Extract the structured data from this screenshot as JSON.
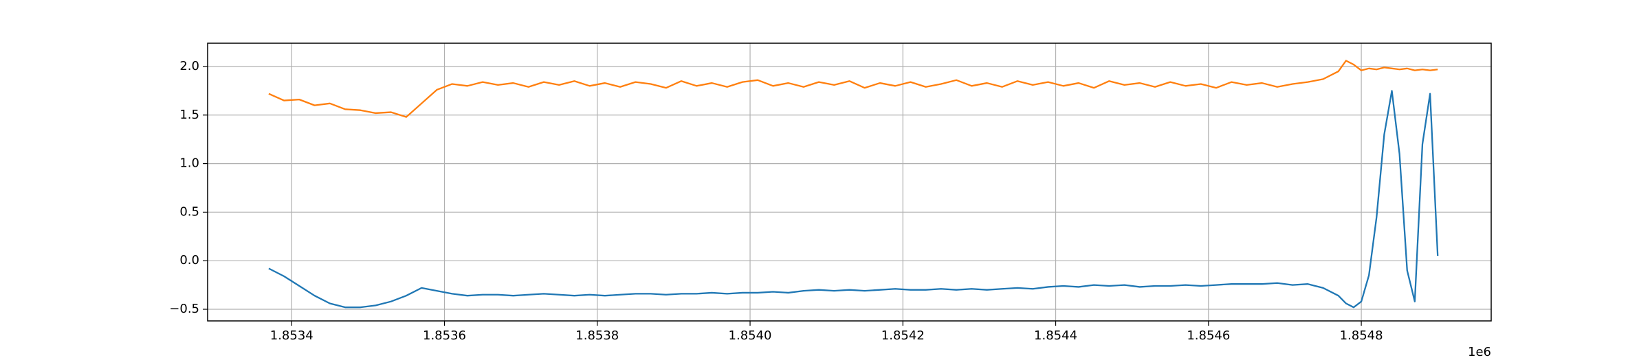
{
  "chart_data": {
    "type": "line",
    "x": [
      1.85337,
      1.85339,
      1.85341,
      1.85343,
      1.85345,
      1.85347,
      1.85349,
      1.85351,
      1.85353,
      1.85355,
      1.85357,
      1.85359,
      1.85361,
      1.85363,
      1.85365,
      1.85367,
      1.85369,
      1.85371,
      1.85373,
      1.85375,
      1.85377,
      1.85379,
      1.85381,
      1.85383,
      1.85385,
      1.85387,
      1.85389,
      1.85391,
      1.85393,
      1.85395,
      1.85397,
      1.85399,
      1.85401,
      1.85403,
      1.85405,
      1.85407,
      1.85409,
      1.85411,
      1.85413,
      1.85415,
      1.85417,
      1.85419,
      1.85421,
      1.85423,
      1.85425,
      1.85427,
      1.85429,
      1.85431,
      1.85433,
      1.85435,
      1.85437,
      1.85439,
      1.85441,
      1.85443,
      1.85445,
      1.85447,
      1.85449,
      1.85451,
      1.85453,
      1.85455,
      1.85457,
      1.85459,
      1.85461,
      1.85463,
      1.85465,
      1.85467,
      1.85469,
      1.85471,
      1.85473,
      1.85475,
      1.85477,
      1.85478,
      1.85479,
      1.8548,
      1.85481,
      1.85482,
      1.85483,
      1.85484,
      1.85485,
      1.85486,
      1.85487,
      1.85488,
      1.85489,
      1.8549
    ],
    "series": [
      {
        "color": "#1f77b4",
        "values": [
          -0.08,
          -0.16,
          -0.26,
          -0.36,
          -0.44,
          -0.48,
          -0.48,
          -0.46,
          -0.42,
          -0.36,
          -0.28,
          -0.31,
          -0.34,
          -0.36,
          -0.35,
          -0.35,
          -0.36,
          -0.35,
          -0.34,
          -0.35,
          -0.36,
          -0.35,
          -0.36,
          -0.35,
          -0.34,
          -0.34,
          -0.35,
          -0.34,
          -0.34,
          -0.33,
          -0.34,
          -0.33,
          -0.33,
          -0.32,
          -0.33,
          -0.31,
          -0.3,
          -0.31,
          -0.3,
          -0.31,
          -0.3,
          -0.29,
          -0.3,
          -0.3,
          -0.29,
          -0.3,
          -0.29,
          -0.3,
          -0.29,
          -0.28,
          -0.29,
          -0.27,
          -0.26,
          -0.27,
          -0.25,
          -0.26,
          -0.25,
          -0.27,
          -0.26,
          -0.26,
          -0.25,
          -0.26,
          -0.25,
          -0.24,
          -0.24,
          -0.24,
          -0.23,
          -0.25,
          -0.24,
          -0.28,
          -0.36,
          -0.44,
          -0.48,
          -0.42,
          -0.15,
          0.45,
          1.3,
          1.75,
          1.1,
          -0.1,
          -0.42,
          1.2,
          1.72,
          0.05
        ]
      },
      {
        "color": "#ff7f0e",
        "values": [
          1.72,
          1.65,
          1.66,
          1.6,
          1.62,
          1.56,
          1.55,
          1.52,
          1.53,
          1.48,
          1.62,
          1.76,
          1.82,
          1.8,
          1.84,
          1.81,
          1.83,
          1.79,
          1.84,
          1.81,
          1.85,
          1.8,
          1.83,
          1.79,
          1.84,
          1.82,
          1.78,
          1.85,
          1.8,
          1.83,
          1.79,
          1.84,
          1.86,
          1.8,
          1.83,
          1.79,
          1.84,
          1.81,
          1.85,
          1.78,
          1.83,
          1.8,
          1.84,
          1.79,
          1.82,
          1.86,
          1.8,
          1.83,
          1.79,
          1.85,
          1.81,
          1.84,
          1.8,
          1.83,
          1.78,
          1.85,
          1.81,
          1.83,
          1.79,
          1.84,
          1.8,
          1.82,
          1.78,
          1.84,
          1.81,
          1.83,
          1.79,
          1.82,
          1.84,
          1.87,
          1.95,
          2.06,
          2.02,
          1.96,
          1.98,
          1.97,
          1.99,
          1.98,
          1.97,
          1.98,
          1.96,
          1.97,
          1.96,
          1.97
        ]
      }
    ],
    "xlim": [
      1.85329,
      1.85497
    ],
    "ylim": [
      -0.62,
      2.24
    ],
    "xticks": [
      1.8534,
      1.8536,
      1.8538,
      {
        "value": 1.854,
        "label": "1.8540"
      },
      1.8542,
      1.8544,
      1.8546,
      1.8548
    ],
    "yticks": [
      {
        "value": -0.5,
        "label": "−0.5"
      },
      {
        "value": 0,
        "label": "0.0"
      },
      0.5,
      {
        "value": 1,
        "label": "1.0"
      },
      1.5,
      {
        "value": 2,
        "label": "2.0"
      }
    ],
    "x_offset_label": "1e6",
    "grid": true
  }
}
